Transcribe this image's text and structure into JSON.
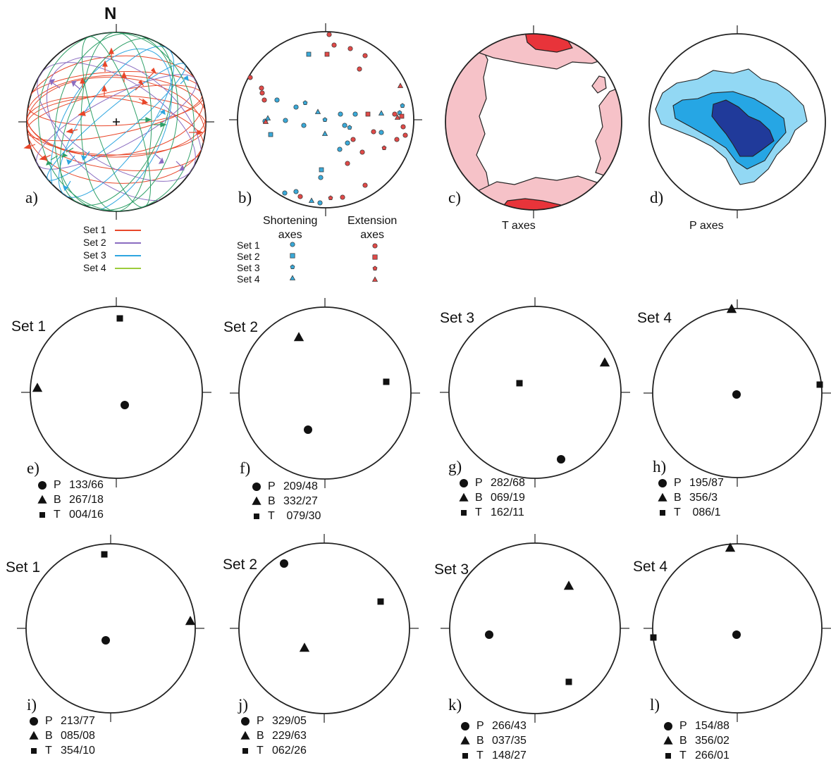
{
  "north_label": "N",
  "panel_a": {
    "label": "a)",
    "legend": [
      {
        "name": "Set 1",
        "color": "#e8472a"
      },
      {
        "name": "Set 2",
        "color": "#8a6cc0"
      },
      {
        "name": "Set 3",
        "color": "#2ea6e0"
      },
      {
        "name": "Set 4",
        "color": "#9ccc3c"
      }
    ]
  },
  "panel_b": {
    "label": "b)",
    "shortening_title": "Shortening\naxes",
    "extension_title": "Extension\naxes",
    "shortening_color": "#3aa9d8",
    "extension_color": "#e04a48",
    "sets": [
      "Set 1",
      "Set 2",
      "Set 3",
      "Set 4"
    ]
  },
  "panel_c": {
    "label": "c)",
    "caption": "T axes",
    "light_color": "#f6c2c8",
    "dark_color": "#e8343a"
  },
  "panel_d": {
    "label": "d)",
    "caption": "P axes",
    "colors": [
      "#92d8f4",
      "#26a6e4",
      "#203a9a"
    ]
  },
  "rows": [
    {
      "panels": [
        {
          "label": "e)",
          "title": "Set 1",
          "axes": [
            {
              "sym": "P",
              "val": "133/66"
            },
            {
              "sym": "B",
              "val": "267/18"
            },
            {
              "sym": "T",
              "val": "004/16"
            }
          ]
        },
        {
          "label": "f)",
          "title": "Set 2",
          "axes": [
            {
              "sym": "P",
              "val": "209/48"
            },
            {
              "sym": "B",
              "val": "332/27"
            },
            {
              "sym": "T",
              "val": " 079/30"
            }
          ]
        },
        {
          "label": "g)",
          "title": "Set 3",
          "axes": [
            {
              "sym": "P",
              "val": "282/68"
            },
            {
              "sym": "B",
              "val": "069/19"
            },
            {
              "sym": "T",
              "val": "162/11"
            }
          ]
        },
        {
          "label": "h)",
          "title": "Set 4",
          "axes": [
            {
              "sym": "P",
              "val": "195/87"
            },
            {
              "sym": "B",
              "val": "356/3"
            },
            {
              "sym": "T",
              "val": " 086/1"
            }
          ]
        }
      ]
    },
    {
      "panels": [
        {
          "label": "i)",
          "title": "Set 1",
          "axes": [
            {
              "sym": "P",
              "val": "213/77"
            },
            {
              "sym": "B",
              "val": "085/08"
            },
            {
              "sym": "T",
              "val": "354/10"
            }
          ]
        },
        {
          "label": "j)",
          "title": "Set 2",
          "axes": [
            {
              "sym": "P",
              "val": "329/05"
            },
            {
              "sym": "B",
              "val": "229/63"
            },
            {
              "sym": "T",
              "val": "062/26"
            }
          ]
        },
        {
          "label": "k)",
          "title": "Set 3",
          "axes": [
            {
              "sym": "P",
              "val": "266/43"
            },
            {
              "sym": "B",
              "val": "037/35"
            },
            {
              "sym": "T",
              "val": "148/27"
            }
          ]
        },
        {
          "label": "l)",
          "title": "Set 4",
          "axes": [
            {
              "sym": "P",
              "val": "154/88"
            },
            {
              "sym": "B",
              "val": "356/02"
            },
            {
              "sym": "T",
              "val": "266/01"
            }
          ]
        }
      ]
    }
  ]
}
